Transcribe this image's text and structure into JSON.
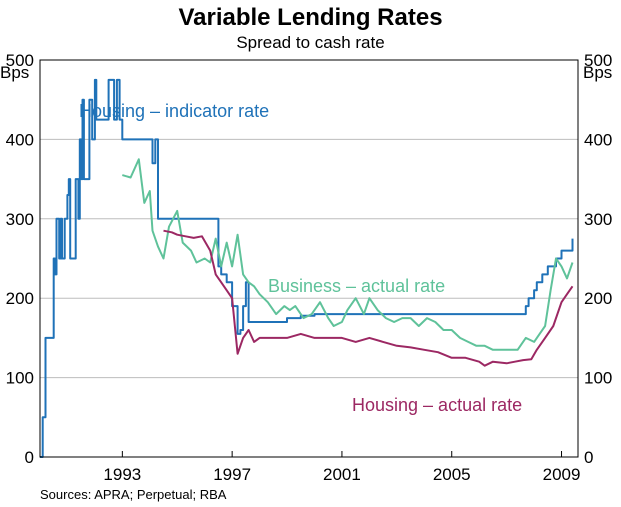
{
  "title": "Variable Lending Rates",
  "subtitle": "Spread to cash rate",
  "source": "Sources: APRA; Perpetual; RBA",
  "chart_data": {
    "type": "line",
    "title": "Variable Lending Rates",
    "subtitle": "Spread to cash rate",
    "ylabel_left": "Bps",
    "ylabel_right": "Bps",
    "ylim": [
      0,
      500
    ],
    "yticks": [
      0,
      100,
      200,
      300,
      400,
      500
    ],
    "xlim": [
      1990.0,
      2009.6
    ],
    "xticks": [
      1993,
      1997,
      2001,
      2005,
      2009
    ],
    "grid": true,
    "series": [
      {
        "name": "Housing – indicator rate",
        "color": "#1f72b8",
        "step": true,
        "x": [
          1990.0,
          1990.1,
          1990.2,
          1990.3,
          1990.5,
          1990.55,
          1990.6,
          1990.7,
          1990.75,
          1990.8,
          1990.9,
          1991.0,
          1991.05,
          1991.1,
          1991.2,
          1991.3,
          1991.4,
          1991.45,
          1991.5,
          1991.55,
          1991.6,
          1991.7,
          1991.8,
          1991.9,
          1992.0,
          1992.05,
          1992.1,
          1992.2,
          1992.3,
          1992.5,
          1992.7,
          1992.8,
          1992.9,
          1993.0,
          1993.5,
          1994.0,
          1994.1,
          1994.2,
          1994.3,
          1994.4,
          1995.0,
          1996.0,
          1996.5,
          1996.6,
          1996.8,
          1997.0,
          1997.2,
          1997.3,
          1997.4,
          1997.5,
          1997.6,
          1997.7,
          1998.0,
          1998.5,
          1999.0,
          1999.5,
          2000.0,
          2001.0,
          2002.0,
          2003.0,
          2004.0,
          2005.0,
          2006.0,
          2007.0,
          2007.5,
          2007.7,
          2007.8,
          2008.0,
          2008.1,
          2008.3,
          2008.5,
          2008.8,
          2009.0,
          2009.2,
          2009.4
        ],
        "values": [
          0,
          50,
          150,
          150,
          250,
          230,
          300,
          250,
          300,
          250,
          300,
          330,
          350,
          250,
          250,
          350,
          300,
          400,
          350,
          450,
          350,
          350,
          450,
          400,
          475,
          425,
          425,
          425,
          425,
          475,
          425,
          475,
          425,
          400,
          400,
          400,
          370,
          400,
          300,
          300,
          300,
          300,
          240,
          230,
          220,
          190,
          155,
          160,
          190,
          220,
          170,
          170,
          170,
          170,
          175,
          178,
          180,
          180,
          180,
          180,
          180,
          180,
          180,
          180,
          180,
          190,
          200,
          210,
          220,
          230,
          240,
          250,
          260,
          260,
          275
        ]
      },
      {
        "name": "Business – actual rate",
        "color": "#5fc29a",
        "x": [
          1993.0,
          1993.3,
          1993.6,
          1993.8,
          1994.0,
          1994.1,
          1994.3,
          1994.5,
          1994.7,
          1995.0,
          1995.2,
          1995.5,
          1995.7,
          1996.0,
          1996.2,
          1996.4,
          1996.6,
          1996.8,
          1997.0,
          1997.2,
          1997.4,
          1997.6,
          1997.8,
          1998.0,
          1998.3,
          1998.6,
          1998.9,
          1999.1,
          1999.3,
          1999.6,
          1999.9,
          2000.2,
          2000.5,
          2000.7,
          2001.0,
          2001.2,
          2001.5,
          2001.8,
          2002.0,
          2002.3,
          2002.6,
          2002.9,
          2003.2,
          2003.5,
          2003.8,
          2004.1,
          2004.4,
          2004.7,
          2005.0,
          2005.3,
          2005.6,
          2005.9,
          2006.2,
          2006.5,
          2006.8,
          2007.1,
          2007.4,
          2007.7,
          2008.0,
          2008.2,
          2008.4,
          2008.6,
          2008.8,
          2009.0,
          2009.2,
          2009.4
        ],
        "values": [
          355,
          352,
          375,
          320,
          335,
          285,
          265,
          250,
          290,
          310,
          270,
          260,
          245,
          250,
          245,
          275,
          240,
          270,
          240,
          280,
          230,
          220,
          215,
          205,
          195,
          180,
          190,
          185,
          190,
          175,
          180,
          195,
          175,
          165,
          170,
          185,
          200,
          180,
          200,
          185,
          175,
          170,
          175,
          175,
          165,
          175,
          170,
          160,
          160,
          150,
          145,
          140,
          140,
          135,
          135,
          135,
          135,
          150,
          145,
          155,
          165,
          210,
          250,
          240,
          225,
          245
        ]
      },
      {
        "name": "Housing – actual rate",
        "color": "#9c2863",
        "x": [
          1994.5,
          1994.8,
          1995.0,
          1995.3,
          1995.6,
          1995.9,
          1996.2,
          1996.4,
          1996.6,
          1996.8,
          1997.0,
          1997.2,
          1997.4,
          1997.6,
          1997.8,
          1998.0,
          1998.5,
          1999.0,
          1999.5,
          2000.0,
          2000.5,
          2001.0,
          2001.5,
          2002.0,
          2002.5,
          2003.0,
          2003.5,
          2004.0,
          2004.5,
          2005.0,
          2005.5,
          2006.0,
          2006.2,
          2006.5,
          2007.0,
          2007.3,
          2007.6,
          2007.9,
          2008.1,
          2008.4,
          2008.7,
          2009.0,
          2009.2,
          2009.4
        ],
        "values": [
          285,
          283,
          280,
          278,
          276,
          278,
          260,
          230,
          220,
          210,
          200,
          130,
          150,
          160,
          145,
          150,
          150,
          150,
          155,
          150,
          150,
          150,
          145,
          150,
          145,
          140,
          138,
          135,
          132,
          125,
          125,
          120,
          115,
          120,
          118,
          120,
          122,
          123,
          135,
          150,
          165,
          195,
          205,
          215
        ]
      }
    ],
    "annotations": [
      {
        "text": "Housing – indicator rate",
        "series": 0
      },
      {
        "text": "Business – actual rate",
        "series": 1
      },
      {
        "text": "Housing – actual rate",
        "series": 2
      }
    ]
  }
}
